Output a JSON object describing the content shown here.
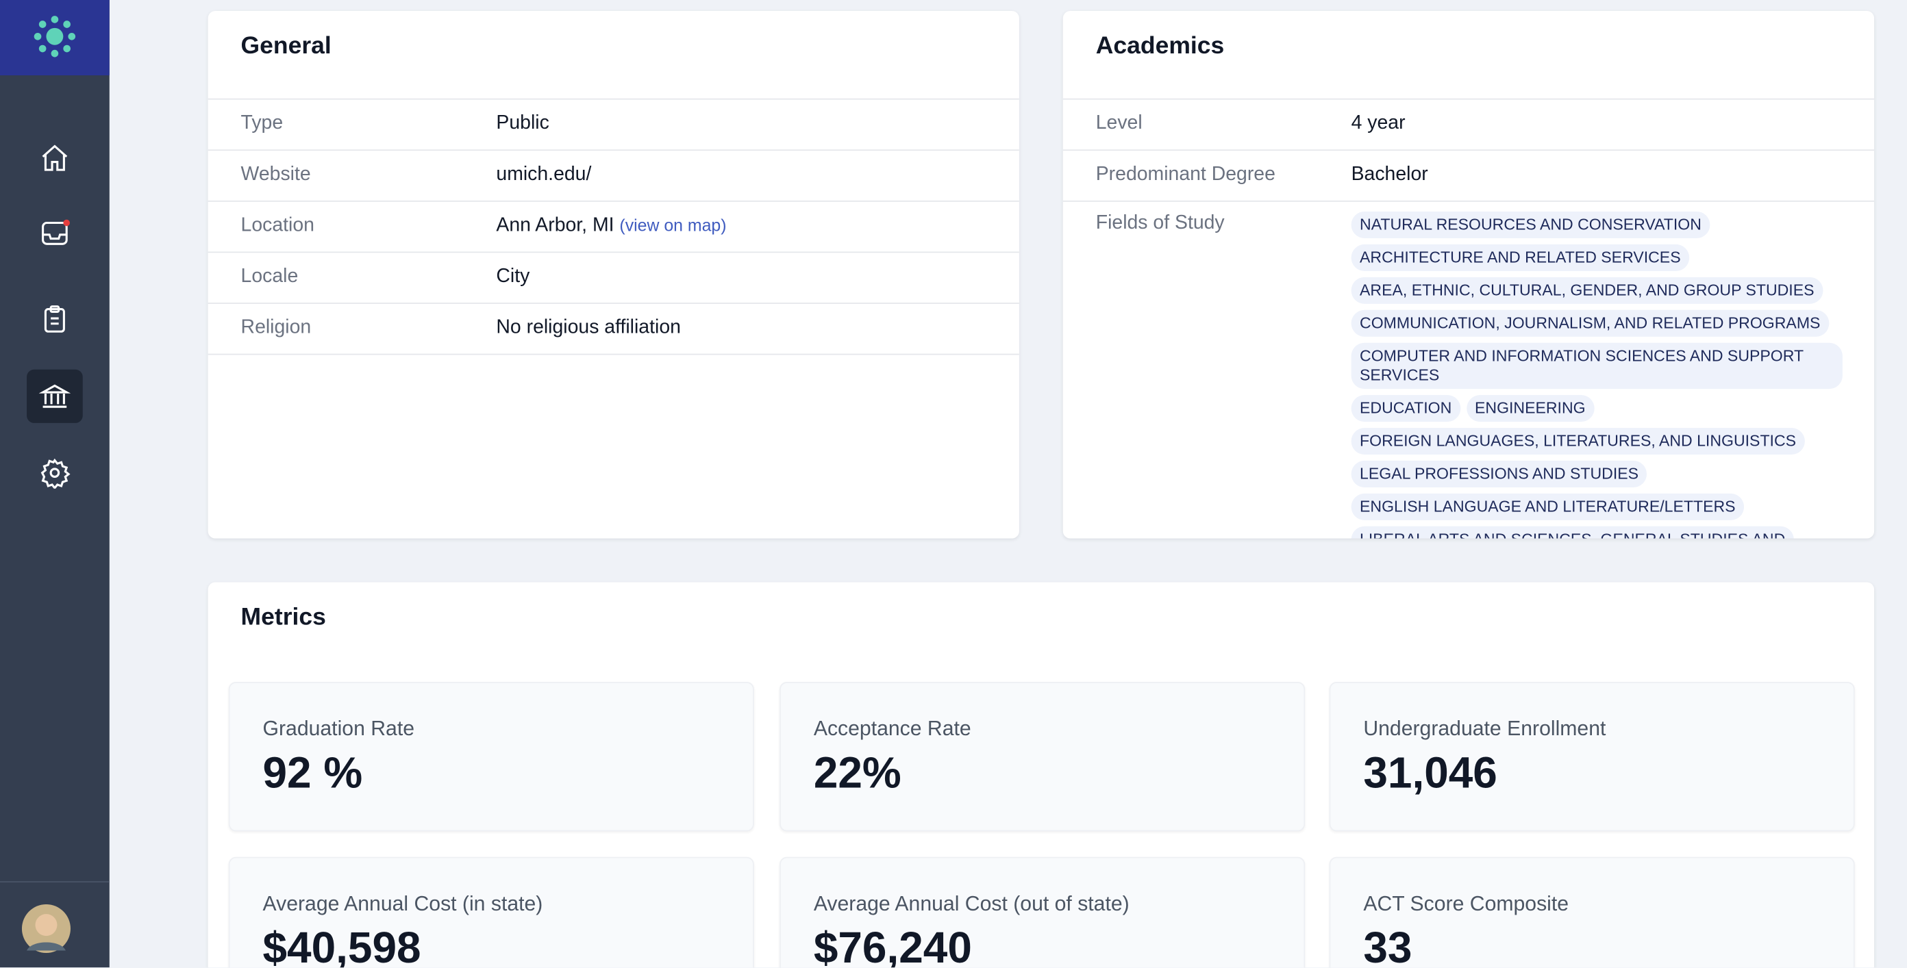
{
  "general": {
    "title": "General",
    "rows": [
      {
        "label": "Type",
        "value": "Public"
      },
      {
        "label": "Website",
        "value": "umich.edu/"
      },
      {
        "label": "Location",
        "value": "Ann Arbor, MI",
        "link": "(view on map)"
      },
      {
        "label": "Locale",
        "value": "City"
      },
      {
        "label": "Religion",
        "value": "No religious affiliation"
      }
    ]
  },
  "academics": {
    "title": "Academics",
    "rows": [
      {
        "label": "Level",
        "value": "4 year"
      },
      {
        "label": "Predominant Degree",
        "value": "Bachelor"
      }
    ],
    "fields_label": "Fields of Study",
    "fields": [
      "NATURAL RESOURCES AND CONSERVATION",
      "ARCHITECTURE AND RELATED SERVICES",
      "AREA, ETHNIC, CULTURAL, GENDER, AND GROUP STUDIES",
      "COMMUNICATION, JOURNALISM, AND RELATED PROGRAMS",
      "COMPUTER AND INFORMATION SCIENCES AND SUPPORT SERVICES",
      "EDUCATION",
      "ENGINEERING",
      "FOREIGN LANGUAGES, LITERATURES, AND LINGUISTICS",
      "LEGAL PROFESSIONS AND STUDIES",
      "ENGLISH LANGUAGE AND LITERATURE/LETTERS",
      "LIBERAL ARTS AND SCIENCES, GENERAL STUDIES AND"
    ]
  },
  "metrics": {
    "title": "Metrics",
    "items": [
      {
        "label": "Graduation Rate",
        "value": "92 %"
      },
      {
        "label": "Acceptance Rate",
        "value": "22%"
      },
      {
        "label": "Undergraduate Enrollment",
        "value": "31,046"
      },
      {
        "label": "Average Annual Cost (in state)",
        "value": "$40,598"
      },
      {
        "label": "Average Annual Cost (out of state)",
        "value": "$76,240"
      },
      {
        "label": "ACT Score Composite",
        "value": "33"
      }
    ]
  }
}
